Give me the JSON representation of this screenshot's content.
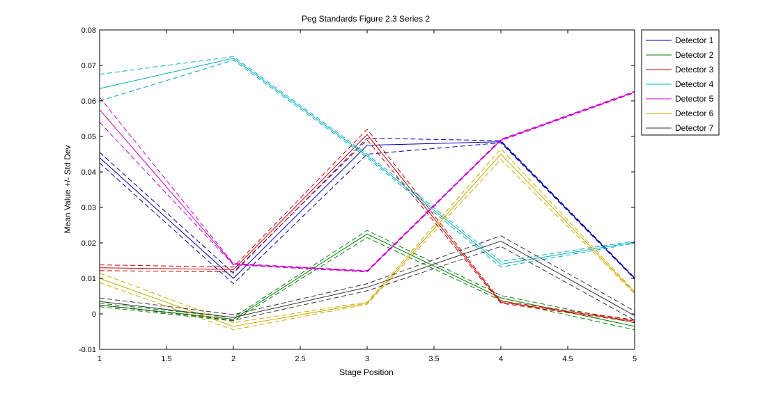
{
  "chart_data": {
    "type": "line",
    "title": "Peg Standards Figure 2.3 Series 2",
    "xlabel": "Stage Position",
    "ylabel": "Mean Value +/- Std Dev",
    "x": [
      1,
      2,
      3,
      4,
      5
    ],
    "xlim": [
      1,
      5
    ],
    "ylim": [
      -0.01,
      0.08
    ],
    "xticks": [
      1,
      1.5,
      2,
      2.5,
      3,
      3.5,
      4,
      4.5,
      5
    ],
    "xtick_labels": [
      "1",
      "1.5",
      "2",
      "2.5",
      "3",
      "3.5",
      "4",
      "4.5",
      "5"
    ],
    "yticks": [
      -0.01,
      0,
      0.01,
      0.02,
      0.03,
      0.04,
      0.05,
      0.06,
      0.07,
      0.08
    ],
    "ytick_labels": [
      "-0.01",
      "0",
      "0.01",
      "0.02",
      "0.03",
      "0.04",
      "0.05",
      "0.06",
      "0.07",
      "0.08"
    ],
    "grid": false,
    "legend_position": "top-right",
    "line_styles": {
      "mean": "solid",
      "std_dev_bounds": "dashed"
    },
    "series": [
      {
        "name": "Detector 1",
        "color": "#0000aa",
        "mean": [
          0.044,
          0.01,
          0.0475,
          0.0485,
          0.01
        ],
        "upper": [
          0.0455,
          0.0115,
          0.0495,
          0.0488,
          0.0102
        ],
        "lower": [
          0.0425,
          0.0085,
          0.045,
          0.0482,
          0.0098
        ]
      },
      {
        "name": "Detector 2",
        "color": "#008000",
        "mean": [
          0.0025,
          -0.0015,
          0.0225,
          0.0045,
          -0.0035
        ],
        "upper": [
          0.003,
          -0.001,
          0.0235,
          0.0052,
          -0.0025
        ],
        "lower": [
          0.002,
          -0.002,
          0.0215,
          0.0038,
          -0.0045
        ]
      },
      {
        "name": "Detector 3",
        "color": "#cc0000",
        "mean": [
          0.013,
          0.0125,
          0.0505,
          0.0033,
          -0.002
        ],
        "upper": [
          0.0138,
          0.0132,
          0.052,
          0.0036,
          -0.0017
        ],
        "lower": [
          0.0122,
          0.0118,
          0.049,
          0.003,
          -0.0023
        ]
      },
      {
        "name": "Detector 4",
        "color": "#00b0c0",
        "mean": [
          0.0635,
          0.072,
          0.0445,
          0.014,
          0.0202
        ],
        "upper": [
          0.0675,
          0.0725,
          0.045,
          0.0148,
          0.0205
        ],
        "lower": [
          0.06,
          0.0715,
          0.044,
          0.0132,
          0.0199
        ]
      },
      {
        "name": "Detector 5",
        "color": "#cc00cc",
        "mean": [
          0.0575,
          0.014,
          0.012,
          0.049,
          0.0625
        ],
        "upper": [
          0.061,
          0.0142,
          0.0122,
          0.0492,
          0.0627
        ],
        "lower": [
          0.054,
          0.0138,
          0.0118,
          0.0488,
          0.0623
        ]
      },
      {
        "name": "Detector 6",
        "color": "#ccaa00",
        "mean": [
          0.01,
          -0.0035,
          0.003,
          0.045,
          0.006
        ],
        "upper": [
          0.0115,
          -0.0025,
          0.0033,
          0.0465,
          0.0063
        ],
        "lower": [
          0.0088,
          -0.0045,
          0.0027,
          0.0435,
          0.0057
        ]
      },
      {
        "name": "Detector 7",
        "color": "#333333",
        "mean": [
          0.0035,
          -0.001,
          0.0075,
          0.0205,
          -0.0005
        ],
        "upper": [
          0.0045,
          -0.0002,
          0.0085,
          0.022,
          0.0008
        ],
        "lower": [
          0.0025,
          -0.0018,
          0.0065,
          0.019,
          -0.0018
        ]
      }
    ]
  }
}
